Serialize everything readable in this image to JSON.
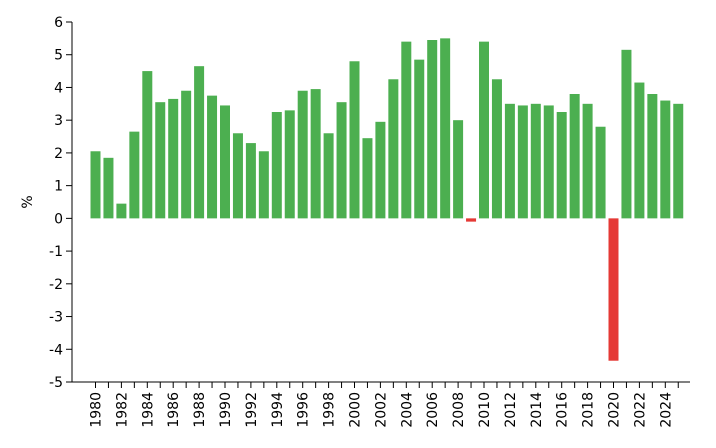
{
  "chart_data": {
    "type": "bar",
    "title": "",
    "xlabel": "",
    "ylabel": "%",
    "ylim": [
      -5,
      6
    ],
    "yticks": [
      6,
      5,
      4,
      3,
      2,
      1,
      0,
      -1,
      -2,
      -3,
      -4,
      -5
    ],
    "xtick_labels": [
      "1980",
      "1982",
      "1984",
      "1986",
      "1988",
      "1990",
      "1992",
      "1994",
      "1996",
      "1998",
      "2000",
      "2002",
      "2004",
      "2006",
      "2008",
      "2010",
      "2012",
      "2014",
      "2016",
      "2018",
      "2020",
      "2022",
      "2024"
    ],
    "grid": false,
    "legend": "none",
    "colors": {
      "positive": "#4caf50",
      "negative": "#e53935",
      "axis": "#000000"
    },
    "categories": [
      "1980",
      "1981",
      "1982",
      "1983",
      "1984",
      "1985",
      "1986",
      "1987",
      "1988",
      "1989",
      "1990",
      "1991",
      "1992",
      "1993",
      "1994",
      "1995",
      "1996",
      "1997",
      "1998",
      "1999",
      "2000",
      "2001",
      "2002",
      "2003",
      "2004",
      "2005",
      "2006",
      "2007",
      "2008",
      "2009",
      "2010",
      "2011",
      "2012",
      "2013",
      "2014",
      "2015",
      "2016",
      "2017",
      "2018",
      "2019",
      "2020",
      "2021",
      "2022",
      "2023",
      "2024",
      "2025"
    ],
    "values": [
      2.05,
      1.85,
      0.45,
      2.65,
      4.5,
      3.55,
      3.65,
      3.9,
      4.65,
      3.75,
      3.45,
      2.6,
      2.3,
      2.05,
      3.25,
      3.3,
      3.9,
      3.95,
      2.6,
      3.55,
      4.8,
      2.45,
      2.95,
      4.25,
      5.4,
      4.85,
      5.45,
      5.5,
      3.0,
      -0.1,
      5.4,
      4.25,
      3.5,
      3.45,
      3.5,
      3.45,
      3.25,
      3.8,
      3.5,
      2.8,
      -4.35,
      5.15,
      4.15,
      3.8,
      3.6,
      3.5
    ]
  }
}
